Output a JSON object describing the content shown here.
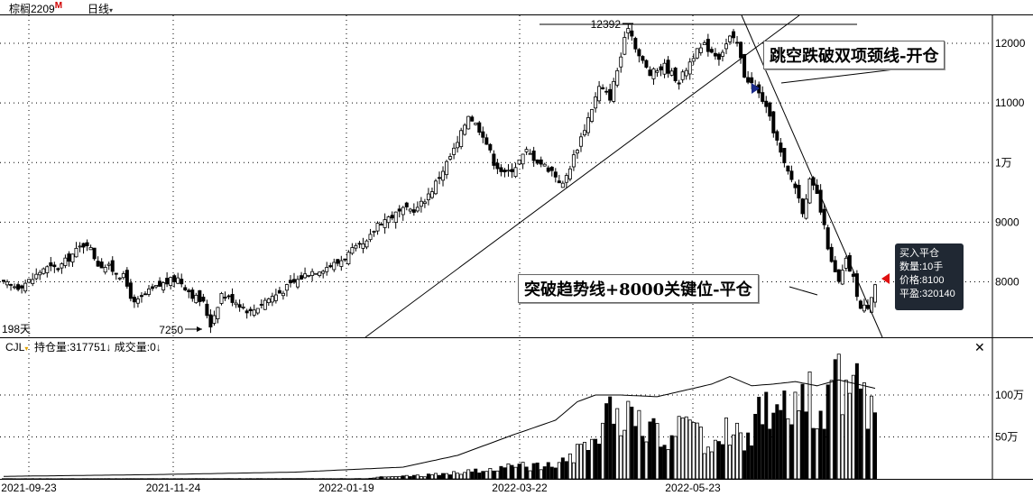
{
  "header": {
    "symbol": "棕榈2209",
    "logo_mark": "M",
    "period": "日线",
    "period_caret": "▾"
  },
  "annotations": {
    "neckline_break": "跳空跌破双项颈线-开仓",
    "breakout_close": "突破趋势线+8000关键位-平仓"
  },
  "markers": {
    "high_label": "12392",
    "low_label": "7250",
    "days_label": "198天"
  },
  "tooltip": {
    "line1": "买入平仓",
    "line2": "数量:10手",
    "line3": "价格:8100",
    "line4": "平盈:320140"
  },
  "volume_panel": {
    "name": "CJL",
    "name_caret": "▾",
    "open_interest": "持仓量:317751↓",
    "volume": "成交量:0↓",
    "close_icon": "close-icon"
  },
  "colors": {
    "up": "#000000",
    "down": "#000000",
    "buy_marker": "#1a2a8a",
    "sell_marker": "#e01010",
    "logo": "#d00000"
  },
  "chart_data": [
    {
      "type": "candlestick",
      "title": "",
      "x_tick_labels": [
        "2021-09-23",
        "2021-11-24",
        "2022-01-19",
        "2022-03-22",
        "2022-05-23"
      ],
      "y_tick_labels": [
        "12000",
        "11000",
        "1万",
        "9000",
        "8000"
      ],
      "ylim": [
        7000,
        12500
      ],
      "grid": true,
      "annotation_points": [
        {
          "label": "12392",
          "value": 12392
        },
        {
          "label": "7250",
          "value": 7250
        }
      ],
      "close_path": [
        {
          "i": 0,
          "c": 7960
        },
        {
          "i": 4,
          "c": 7920
        },
        {
          "i": 8,
          "c": 8050
        },
        {
          "i": 11,
          "c": 8230
        },
        {
          "i": 15,
          "c": 8230
        },
        {
          "i": 18,
          "c": 8400
        },
        {
          "i": 21,
          "c": 8580
        },
        {
          "i": 23,
          "c": 8660
        },
        {
          "i": 26,
          "c": 8300
        },
        {
          "i": 29,
          "c": 8240
        },
        {
          "i": 33,
          "c": 8080
        },
        {
          "i": 36,
          "c": 7620
        },
        {
          "i": 40,
          "c": 7830
        },
        {
          "i": 44,
          "c": 7970
        },
        {
          "i": 48,
          "c": 8060
        },
        {
          "i": 52,
          "c": 7780
        },
        {
          "i": 55,
          "c": 7640
        },
        {
          "i": 57,
          "c": 7280
        },
        {
          "i": 60,
          "c": 7800
        },
        {
          "i": 64,
          "c": 7670
        },
        {
          "i": 68,
          "c": 7490
        },
        {
          "i": 72,
          "c": 7690
        },
        {
          "i": 76,
          "c": 7820
        },
        {
          "i": 80,
          "c": 7990
        },
        {
          "i": 84,
          "c": 8160
        },
        {
          "i": 88,
          "c": 8230
        },
        {
          "i": 92,
          "c": 8320
        },
        {
          "i": 96,
          "c": 8520
        },
        {
          "i": 100,
          "c": 8640
        },
        {
          "i": 103,
          "c": 8980
        },
        {
          "i": 106,
          "c": 9080
        },
        {
          "i": 110,
          "c": 9190
        },
        {
          "i": 114,
          "c": 9230
        },
        {
          "i": 118,
          "c": 9550
        },
        {
          "i": 121,
          "c": 9880
        },
        {
          "i": 125,
          "c": 10320
        },
        {
          "i": 128,
          "c": 10810
        },
        {
          "i": 132,
          "c": 10480
        },
        {
          "i": 135,
          "c": 10010
        },
        {
          "i": 138,
          "c": 9800
        },
        {
          "i": 141,
          "c": 9950
        },
        {
          "i": 144,
          "c": 10190
        },
        {
          "i": 147,
          "c": 10030
        },
        {
          "i": 151,
          "c": 9860
        },
        {
          "i": 154,
          "c": 9620
        },
        {
          "i": 157,
          "c": 10100
        },
        {
          "i": 160,
          "c": 10580
        },
        {
          "i": 164,
          "c": 11260
        },
        {
          "i": 167,
          "c": 11100
        },
        {
          "i": 170,
          "c": 11780
        },
        {
          "i": 172,
          "c": 12300
        },
        {
          "i": 175,
          "c": 11790
        },
        {
          "i": 178,
          "c": 11480
        },
        {
          "i": 182,
          "c": 11620
        },
        {
          "i": 186,
          "c": 11360
        },
        {
          "i": 190,
          "c": 11800
        },
        {
          "i": 193,
          "c": 11960
        },
        {
          "i": 197,
          "c": 11780
        },
        {
          "i": 200,
          "c": 12090
        },
        {
          "i": 202,
          "c": 11990
        },
        {
          "i": 204,
          "c": 11470
        },
        {
          "i": 206,
          "c": 11320
        },
        {
          "i": 209,
          "c": 11060
        },
        {
          "i": 212,
          "c": 10550
        },
        {
          "i": 215,
          "c": 9950
        },
        {
          "i": 218,
          "c": 9600
        },
        {
          "i": 220,
          "c": 9200
        },
        {
          "i": 222,
          "c": 9680
        },
        {
          "i": 224,
          "c": 9450
        },
        {
          "i": 226,
          "c": 8900
        },
        {
          "i": 228,
          "c": 8300
        },
        {
          "i": 230,
          "c": 7980
        },
        {
          "i": 232,
          "c": 8350
        },
        {
          "i": 234,
          "c": 8050
        },
        {
          "i": 236,
          "c": 7550
        },
        {
          "i": 238,
          "c": 7600
        },
        {
          "i": 240,
          "c": 7980
        }
      ]
    },
    {
      "type": "bar",
      "title": "",
      "y_tick_labels": [
        "100万",
        "50万"
      ],
      "ylim": [
        0,
        1450000
      ],
      "series": [
        {
          "type": "bar",
          "values_path": [
            {
              "i": 0,
              "v": 2000
            },
            {
              "i": 100,
              "v": 3000
            },
            {
              "i": 105,
              "v": 25000
            },
            {
              "i": 115,
              "v": 40000
            },
            {
              "i": 125,
              "v": 80000
            },
            {
              "i": 135,
              "v": 120000
            },
            {
              "i": 145,
              "v": 170000
            },
            {
              "i": 155,
              "v": 240000
            },
            {
              "i": 160,
              "v": 500000
            },
            {
              "i": 165,
              "v": 700000
            },
            {
              "i": 170,
              "v": 850000
            },
            {
              "i": 175,
              "v": 750000
            },
            {
              "i": 180,
              "v": 520000
            },
            {
              "i": 185,
              "v": 600000
            },
            {
              "i": 190,
              "v": 700000
            },
            {
              "i": 195,
              "v": 350000
            },
            {
              "i": 200,
              "v": 700000
            },
            {
              "i": 205,
              "v": 550000
            },
            {
              "i": 210,
              "v": 900000
            },
            {
              "i": 215,
              "v": 1000000
            },
            {
              "i": 220,
              "v": 1200000
            },
            {
              "i": 225,
              "v": 850000
            },
            {
              "i": 228,
              "v": 1250000
            },
            {
              "i": 232,
              "v": 1100000
            },
            {
              "i": 236,
              "v": 1050000
            },
            {
              "i": 240,
              "v": 950000
            }
          ]
        },
        {
          "type": "line",
          "values_path": [
            {
              "i": 0,
              "v": 30000
            },
            {
              "i": 40,
              "v": 50000
            },
            {
              "i": 80,
              "v": 80000
            },
            {
              "i": 110,
              "v": 140000
            },
            {
              "i": 125,
              "v": 280000
            },
            {
              "i": 140,
              "v": 520000
            },
            {
              "i": 152,
              "v": 700000
            },
            {
              "i": 158,
              "v": 920000
            },
            {
              "i": 163,
              "v": 1000000
            },
            {
              "i": 170,
              "v": 1000000
            },
            {
              "i": 180,
              "v": 980000
            },
            {
              "i": 188,
              "v": 1060000
            },
            {
              "i": 195,
              "v": 1130000
            },
            {
              "i": 200,
              "v": 1220000
            },
            {
              "i": 206,
              "v": 1110000
            },
            {
              "i": 212,
              "v": 1130000
            },
            {
              "i": 218,
              "v": 1160000
            },
            {
              "i": 224,
              "v": 1110000
            },
            {
              "i": 230,
              "v": 1180000
            },
            {
              "i": 236,
              "v": 1120000
            },
            {
              "i": 240,
              "v": 1080000
            }
          ]
        }
      ]
    }
  ]
}
